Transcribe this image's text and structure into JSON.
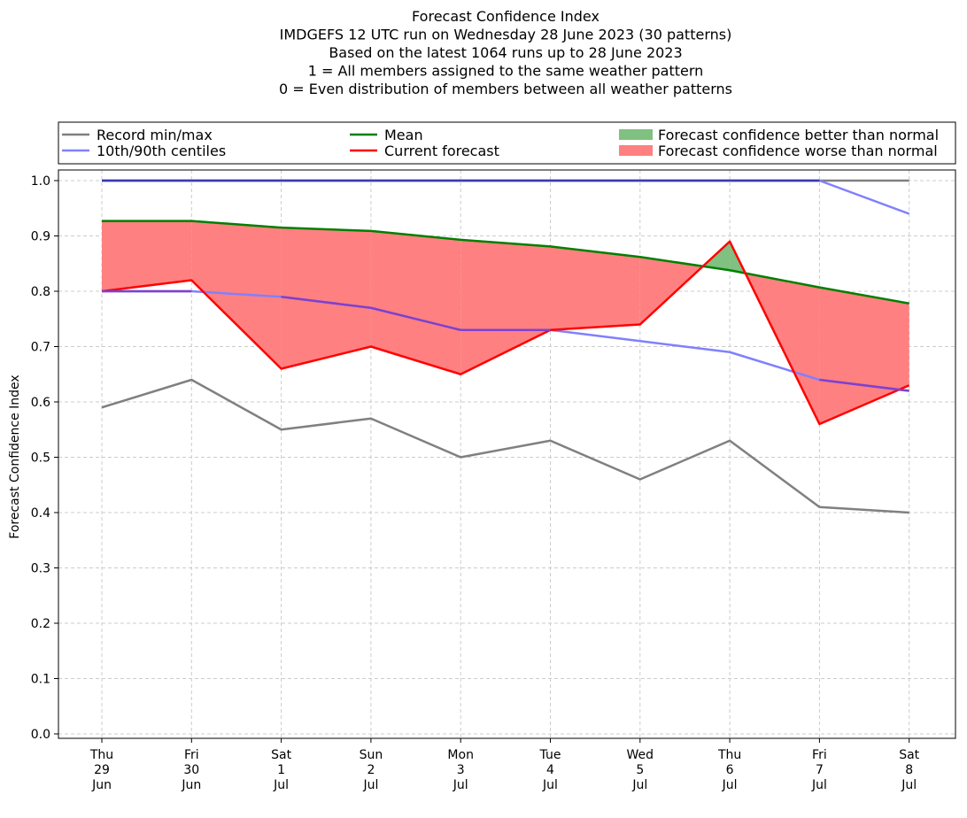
{
  "chart_data": {
    "type": "line",
    "title_lines": [
      "Forecast Confidence Index",
      "IMDGEFS 12 UTC run on Wednesday 28 June 2023 (30 patterns)",
      "Based on the latest 1064 runs up to 28 June 2023",
      "1 = All members assigned to the same weather pattern",
      "0 = Even distribution of members between all weather patterns"
    ],
    "ylabel": "Forecast Confidence Index",
    "ylim": [
      0,
      1.0
    ],
    "yticks": [
      "0.0",
      "0.1",
      "0.2",
      "0.3",
      "0.4",
      "0.5",
      "0.6",
      "0.7",
      "0.8",
      "0.9",
      "1.0"
    ],
    "ytick_values": [
      0,
      0.1,
      0.2,
      0.3,
      0.4,
      0.5,
      0.6,
      0.7,
      0.8,
      0.9,
      1.0
    ],
    "categories": [
      [
        "Thu",
        "29",
        "Jun"
      ],
      [
        "Fri",
        "30",
        "Jun"
      ],
      [
        "Sat",
        "1",
        "Jul"
      ],
      [
        "Sun",
        "2",
        "Jul"
      ],
      [
        "Mon",
        "3",
        "Jul"
      ],
      [
        "Tue",
        "4",
        "Jul"
      ],
      [
        "Wed",
        "5",
        "Jul"
      ],
      [
        "Thu",
        "6",
        "Jul"
      ],
      [
        "Fri",
        "7",
        "Jul"
      ],
      [
        "Sat",
        "8",
        "Jul"
      ]
    ],
    "grid": true,
    "legend_position": "top",
    "series": [
      {
        "name": "Record min/max",
        "role": "record_min",
        "color": "#808080",
        "values": [
          0.59,
          0.64,
          0.55,
          0.57,
          0.5,
          0.53,
          0.46,
          0.53,
          0.41,
          0.4
        ]
      },
      {
        "name": "Record min/max",
        "role": "record_max",
        "color": "#808080",
        "values": [
          1.0,
          1.0,
          1.0,
          1.0,
          1.0,
          1.0,
          1.0,
          1.0,
          1.0,
          1.0
        ]
      },
      {
        "name": "10th/90th centiles",
        "role": "p10",
        "color": "#8080ff",
        "values": [
          0.8,
          0.8,
          0.79,
          0.77,
          0.73,
          0.73,
          0.71,
          0.69,
          0.64,
          0.62
        ]
      },
      {
        "name": "10th/90th centiles",
        "role": "p90",
        "color": "#8080ff",
        "values": [
          1.0,
          1.0,
          1.0,
          1.0,
          1.0,
          1.0,
          1.0,
          1.0,
          1.0,
          0.94
        ]
      },
      {
        "name": "Mean",
        "role": "mean",
        "color": "#008000",
        "values": [
          0.927,
          0.927,
          0.915,
          0.909,
          0.893,
          0.881,
          0.862,
          0.838,
          0.807,
          0.778
        ]
      },
      {
        "name": "Current forecast",
        "role": "current",
        "color": "#ff0000",
        "values": [
          0.8,
          0.82,
          0.66,
          0.7,
          0.65,
          0.73,
          0.74,
          0.89,
          0.56,
          0.63
        ]
      }
    ],
    "legend": [
      {
        "label": "Record min/max",
        "kind": "line",
        "color": "#808080"
      },
      {
        "label": "Mean",
        "kind": "line",
        "color": "#008000"
      },
      {
        "label": "Forecast confidence better than normal",
        "kind": "patch",
        "color": "#80c080"
      },
      {
        "label": "10th/90th centiles",
        "kind": "line",
        "color": "#8080ff"
      },
      {
        "label": "Current forecast",
        "kind": "line",
        "color": "#ff0000"
      },
      {
        "label": "Forecast confidence worse than normal",
        "kind": "patch",
        "color": "#ff8080"
      }
    ],
    "fill_colors": {
      "better": "#80c080",
      "worse": "#ff8080",
      "overlap": "#8040cc"
    }
  }
}
